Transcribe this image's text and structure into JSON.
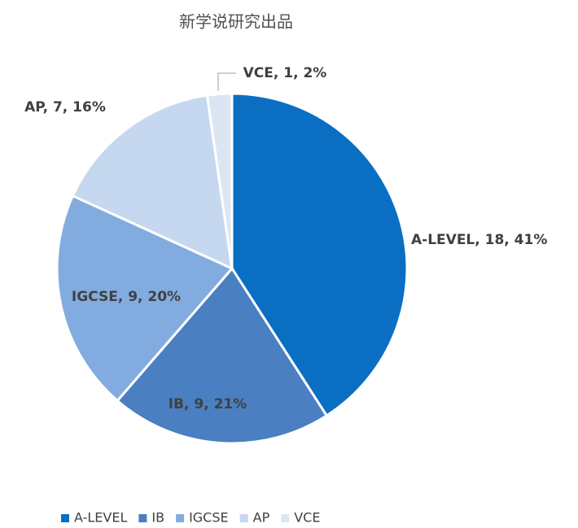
{
  "chart_data": {
    "type": "pie",
    "title": "新学说研究出品",
    "categories": [
      "A-LEVEL",
      "IB",
      "IGCSE",
      "AP",
      "VCE"
    ],
    "values": [
      18,
      9,
      9,
      7,
      1
    ],
    "value_labels": [
      "A-LEVEL, 18, 41%",
      "IB, 9, 21%",
      "IGCSE, 9, 20%",
      "AP, 7, 16%",
      "VCE, 1, 2%"
    ],
    "colors": [
      "#0a6fc2",
      "#4a7fc1",
      "#82ace0",
      "#c6d8ef",
      "#dce6f3"
    ],
    "legend": "bottom"
  }
}
